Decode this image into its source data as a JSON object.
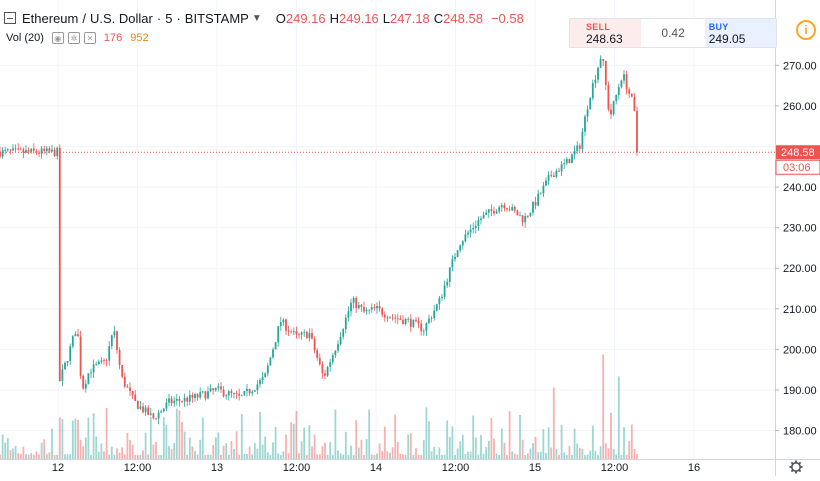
{
  "legend": {
    "symbol": "Ethereum",
    "separator": "/",
    "quote": "U.S. Dollar",
    "dot": "·",
    "interval": "5",
    "exchange": "BITSTAMP",
    "open_key": "O",
    "open": "249.16",
    "high_key": "H",
    "high": "249.16",
    "low_key": "L",
    "low": "247.18",
    "close_key": "C",
    "close": "248.58",
    "change": "−0.58"
  },
  "volume_legend": {
    "label": "Vol (20)",
    "value1": "176",
    "value2": "952"
  },
  "trade_panel": {
    "sell_label": "SELL",
    "sell_price": "248.63",
    "spread": "0.42",
    "buy_label": "BUY",
    "buy_price": "249.05"
  },
  "colors": {
    "up": "#26a69a",
    "down": "#ef5350",
    "grid": "#f0f3fa",
    "axis_text": "#131722",
    "info": "#f9a825"
  },
  "price_tag": {
    "price": "248.58",
    "countdown": "03:06"
  },
  "icons": {
    "collapse": "minus-square-icon",
    "chevron": "chevron-down-icon",
    "info": "info-circle-icon",
    "settings": "gear-icon"
  },
  "chart_data": {
    "type": "candlestick",
    "ylim": [
      173,
      275
    ],
    "y_ticks": [
      180,
      190,
      200,
      210,
      220,
      230,
      240,
      250,
      260,
      270
    ],
    "y_tick_labels": [
      "180.00",
      "190.00",
      "200.00",
      "210.00",
      "220.00",
      "230.00",
      "240.00",
      "",
      "260.00",
      "270.00"
    ],
    "x_tick_labels": [
      "12",
      "12:00",
      "13",
      "12:00",
      "14",
      "12:00",
      "15",
      "12:00",
      "16"
    ],
    "close_anchors": [
      [
        0,
        191
      ],
      [
        0.06,
        198
      ],
      [
        0.12,
        206
      ],
      [
        0.15,
        190
      ],
      [
        0.2,
        195
      ],
      [
        0.3,
        197
      ],
      [
        0.35,
        205
      ],
      [
        0.4,
        193
      ],
      [
        0.48,
        187
      ],
      [
        0.6,
        183
      ],
      [
        0.7,
        187
      ],
      [
        0.85,
        188
      ],
      [
        1.0,
        190
      ],
      [
        1.15,
        188
      ],
      [
        1.3,
        193
      ],
      [
        1.4,
        207
      ],
      [
        1.5,
        203
      ],
      [
        1.58,
        204
      ],
      [
        1.67,
        193
      ],
      [
        1.75,
        201
      ],
      [
        1.85,
        212
      ],
      [
        1.93,
        209
      ],
      [
        2.0,
        210
      ],
      [
        2.1,
        208
      ],
      [
        2.2,
        207
      ],
      [
        2.3,
        205
      ],
      [
        2.4,
        212
      ],
      [
        2.52,
        226
      ],
      [
        2.65,
        232
      ],
      [
        2.8,
        236
      ],
      [
        2.93,
        232
      ],
      [
        3.0,
        236
      ],
      [
        3.1,
        243
      ],
      [
        3.2,
        246
      ],
      [
        3.28,
        250
      ],
      [
        3.34,
        262
      ],
      [
        3.42,
        273
      ],
      [
        3.47,
        257
      ],
      [
        3.55,
        268
      ],
      [
        3.62,
        260
      ],
      [
        3.65,
        248.58
      ]
    ],
    "volume_spikes": [
      [
        3.12,
        0.65
      ],
      [
        3.43,
        0.95
      ],
      [
        3.53,
        0.75
      ],
      [
        1.75,
        0.45
      ],
      [
        2.45,
        0.35
      ],
      [
        2.9,
        0.4
      ]
    ],
    "volume_colors": {
      "up": "rgba(38,166,154,0.45)",
      "down": "rgba(239,83,80,0.45)"
    },
    "volume_axis_label": "",
    "last_price": 248.58
  }
}
